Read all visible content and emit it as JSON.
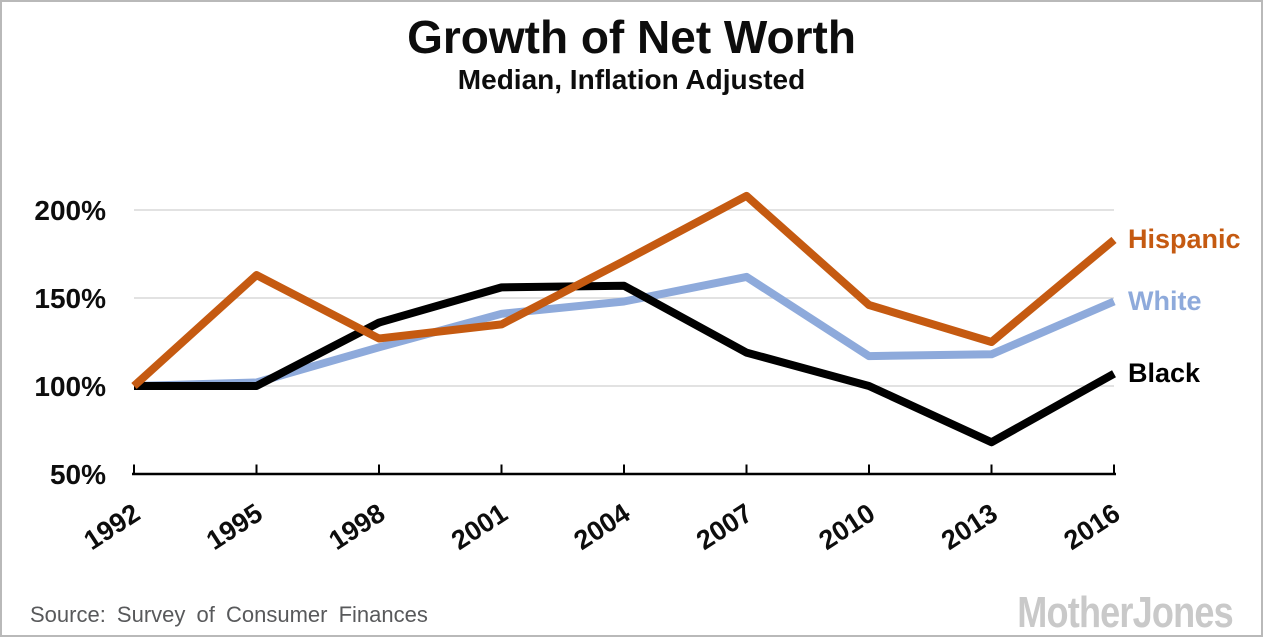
{
  "header": {
    "title": "Growth of Net Worth",
    "subtitle": "Median, Inflation Adjusted"
  },
  "chart_data": {
    "type": "line",
    "title": "Growth of Net Worth",
    "subtitle": "Median, Inflation Adjusted",
    "categories": [
      "1992",
      "1995",
      "1998",
      "2001",
      "2004",
      "2007",
      "2010",
      "2013",
      "2016"
    ],
    "series": [
      {
        "name": "Hispanic",
        "color": "#C55A11",
        "values": [
          100,
          163,
          127,
          135,
          171,
          208,
          146,
          125,
          183
        ]
      },
      {
        "name": "White",
        "color": "#8EAADB",
        "values": [
          100,
          102,
          122,
          141,
          148,
          162,
          117,
          118,
          148
        ]
      },
      {
        "name": "Black",
        "color": "#000000",
        "values": [
          100,
          100,
          136,
          156,
          157,
          119,
          100,
          68,
          107
        ]
      }
    ],
    "yticks": [
      {
        "value": 200,
        "label": "200%"
      },
      {
        "value": 150,
        "label": "150%"
      },
      {
        "value": 100,
        "label": "100%"
      },
      {
        "value": 50,
        "label": "50%"
      }
    ],
    "ylim": [
      50,
      215
    ],
    "grid": true,
    "gridline_color": "#D9D9D9",
    "axis_color": "#000000",
    "legend_position": "right-of-line-ends"
  },
  "footer": {
    "source": "Source: Survey of Consumer Finances",
    "logo": "MotherJones"
  }
}
